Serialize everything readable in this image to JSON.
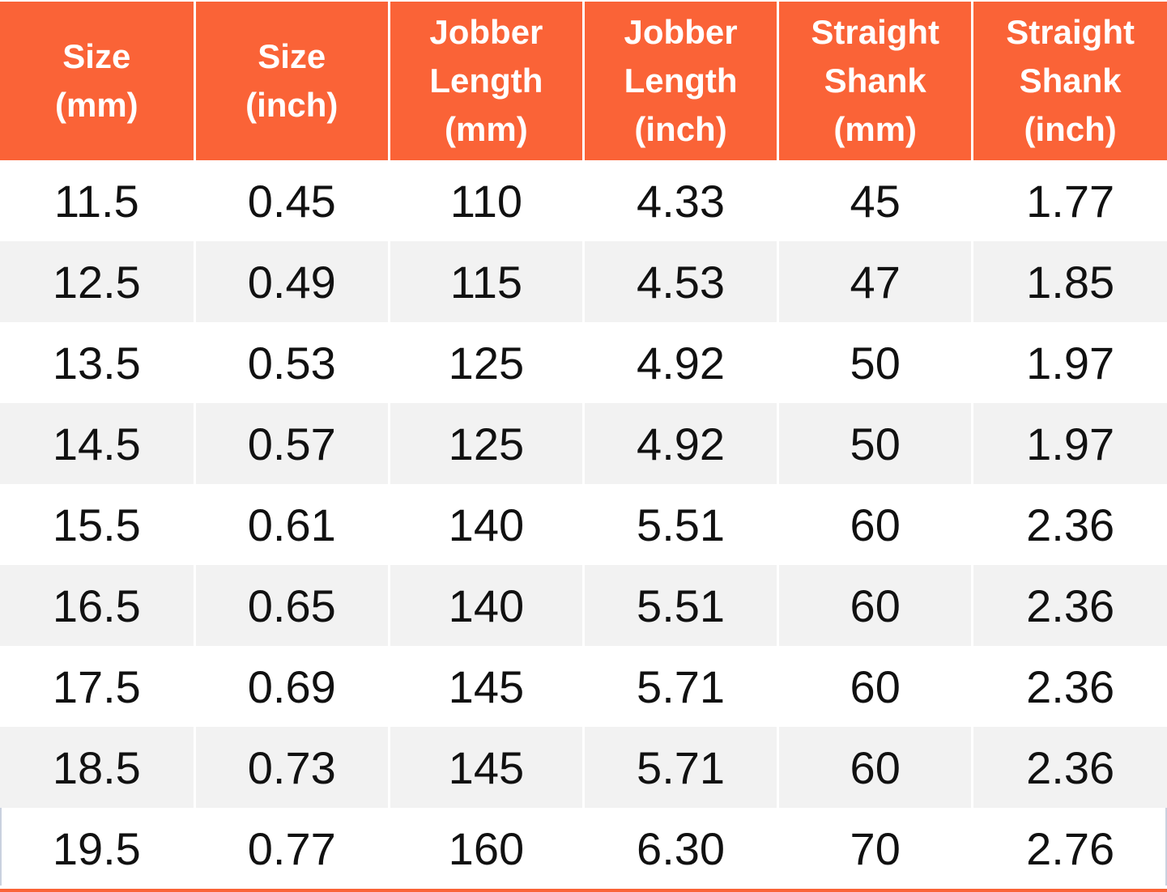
{
  "chart_data": {
    "type": "table",
    "columns": [
      "Size (mm)",
      "Size (inch)",
      "Jobber Length (mm)",
      "Jobber Length (inch)",
      "Straight Shank (mm)",
      "Straight Shank (inch)"
    ],
    "rows": [
      [
        "11.5",
        "0.45",
        "110",
        "4.33",
        "45",
        "1.77"
      ],
      [
        "12.5",
        "0.49",
        "115",
        "4.53",
        "47",
        "1.85"
      ],
      [
        "13.5",
        "0.53",
        "125",
        "4.92",
        "50",
        "1.97"
      ],
      [
        "14.5",
        "0.57",
        "125",
        "4.92",
        "50",
        "1.97"
      ],
      [
        "15.5",
        "0.61",
        "140",
        "5.51",
        "60",
        "2.36"
      ],
      [
        "16.5",
        "0.65",
        "140",
        "5.51",
        "60",
        "2.36"
      ],
      [
        "17.5",
        "0.69",
        "145",
        "5.71",
        "60",
        "2.36"
      ],
      [
        "18.5",
        "0.73",
        "145",
        "5.71",
        "60",
        "2.36"
      ],
      [
        "19.5",
        "0.77",
        "160",
        "6.30",
        "70",
        "2.76"
      ]
    ],
    "layout": {
      "header_background": "#FA6337",
      "alternating_row_background": "#F2F2F2",
      "first_body_row_background": "#FFFFFF",
      "grid": "white column dividers, orange bottom rule"
    }
  },
  "table": {
    "header_lines": [
      "Size\n(mm)",
      "Size\n(inch)",
      "Jobber\nLength\n(mm)",
      "Jobber\nLength\n(inch)",
      "Straight\nShank\n(mm)",
      "Straight\nShank\n(inch)"
    ]
  },
  "colors": {
    "accent": "#FA6337",
    "rowAlt": "#F2F2F2",
    "headerText": "#FFFFFF",
    "bodyText": "#111111",
    "edgeLine": "#C9D1DF"
  }
}
